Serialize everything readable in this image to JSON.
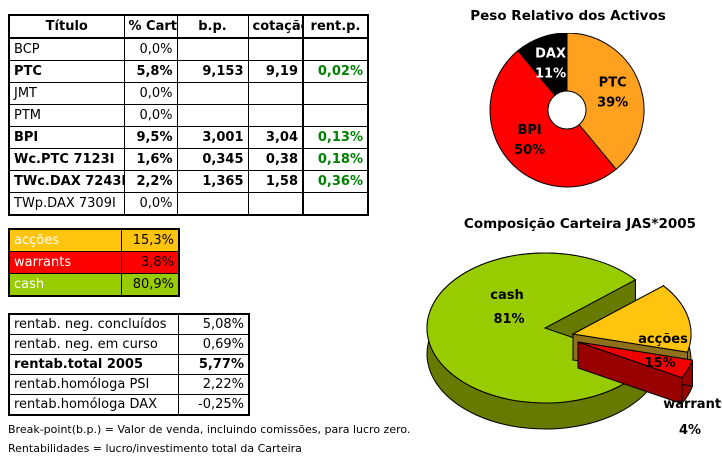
{
  "positions_table": {
    "headers": [
      "Título",
      "% Cart",
      "b.p.",
      "cotação",
      "rent.p."
    ],
    "rows": [
      {
        "titulo": "BCP",
        "cart": "0,0%",
        "bp": "",
        "cot": "",
        "rent": "",
        "bold": false
      },
      {
        "titulo": "PTC",
        "cart": "5,8%",
        "bp": "9,153",
        "cot": "9,19",
        "rent": "0,02%",
        "bold": true
      },
      {
        "titulo": "JMT",
        "cart": "0,0%",
        "bp": "",
        "cot": "",
        "rent": "",
        "bold": false
      },
      {
        "titulo": "PTM",
        "cart": "0,0%",
        "bp": "",
        "cot": "",
        "rent": "",
        "bold": false
      },
      {
        "titulo": "BPI",
        "cart": "9,5%",
        "bp": "3,001",
        "cot": "3,04",
        "rent": "0,13%",
        "bold": true
      },
      {
        "titulo": "Wc.PTC 7123I",
        "cart": "1,6%",
        "bp": "0,345",
        "cot": "0,38",
        "rent": "0,18%",
        "bold": true
      },
      {
        "titulo": "TWc.DAX 7243I",
        "cart": "2,2%",
        "bp": "1,365",
        "cot": "1,58",
        "rent": "0,36%",
        "bold": true
      },
      {
        "titulo": "TWp.DAX 7309I",
        "cart": "0,0%",
        "bp": "",
        "cot": "",
        "rent": "",
        "bold": false
      }
    ],
    "positive_return_color": "#008000"
  },
  "allocation_table": {
    "rows": [
      {
        "label": "acções",
        "value": "15,3%",
        "color": "#FFC40E"
      },
      {
        "label": "warrants",
        "value": "3,8%",
        "color": "#FF0000"
      },
      {
        "label": "cash",
        "value": "80,9%",
        "color": "#99CC00"
      }
    ]
  },
  "returns_table": {
    "rows": [
      {
        "label": "rentab. neg. concluídos",
        "value": "5,08%",
        "bold": false
      },
      {
        "label": "rentab. neg. em curso",
        "value": "0,69%",
        "bold": false
      },
      {
        "label": "rentab.total 2005",
        "value": "5,77%",
        "bold": true
      },
      {
        "label": "rentab.homóloga PSI",
        "value": "2,22%",
        "bold": false
      },
      {
        "label": "rentab.homóloga DAX",
        "value": "-0,25%",
        "bold": false
      }
    ]
  },
  "footnotes": [
    "Break-point(b.p.) = Valor de venda, incluindo comissões, para lucro zero.",
    "Rentabilidades = lucro/investimento total da Carteira"
  ],
  "chart_data": [
    {
      "type": "pie",
      "subtype": "donut",
      "title": "Peso Relativo dos Activos",
      "start_angle": 0,
      "legend": "none",
      "labels": "inside",
      "slices": [
        {
          "name": "PTC",
          "value": 39,
          "pct": "39%",
          "color": "#FFA01E",
          "label_color": "#000000"
        },
        {
          "name": "BPI",
          "value": 50,
          "pct": "50%",
          "color": "#FF0000",
          "label_color": "#000000"
        },
        {
          "name": "DAX",
          "value": 11,
          "pct": "11%",
          "color": "#000000",
          "label_color": "#FFFFFF"
        }
      ]
    },
    {
      "type": "pie",
      "subtype": "3d-exploded",
      "title": "Composição Carteira JAS*2005",
      "start_angle": 50,
      "legend": "none",
      "labels": "outside",
      "slices": [
        {
          "name": "acções",
          "value": 15,
          "pct": "15%",
          "color": "#FFC40E",
          "side_color": "#8F711B",
          "label_color": "#000000",
          "exploded": true
        },
        {
          "name": "warrants",
          "value": 4,
          "pct": "4%",
          "color": "#F00000",
          "side_color": "#990000",
          "label_color": "#000000",
          "exploded": true
        },
        {
          "name": "cash",
          "value": 81,
          "pct": "81%",
          "color": "#99CC00",
          "side_color": "#667A00",
          "label_color": "#000000",
          "exploded": false
        }
      ]
    }
  ]
}
